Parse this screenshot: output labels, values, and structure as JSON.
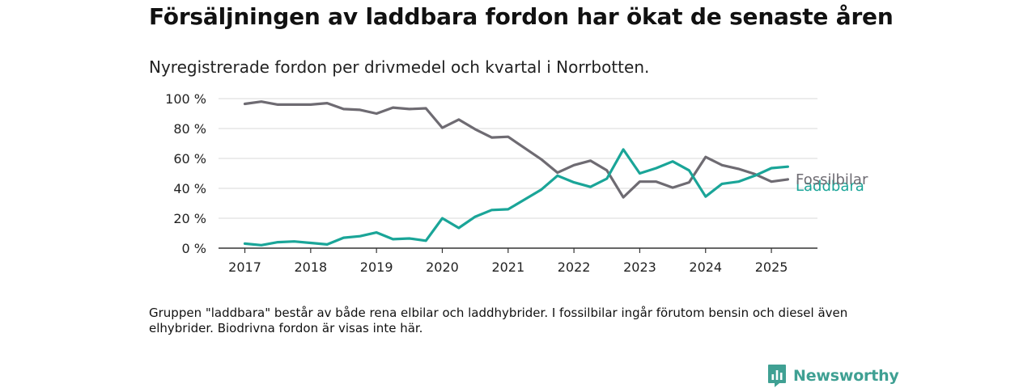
{
  "header": {
    "title": "Försäljningen av laddbara fordon har ökat de senaste åren",
    "subtitle": "Nyregistrerade fordon per drivmedel och kvartal i Norrbotten."
  },
  "footer": {
    "note": "Gruppen \"laddbara\" består av både rena elbilar och laddhybrider. I fossilbilar ingår förutom bensin och diesel även elhybrider. Biodrivna fordon är visas inte här.",
    "brand": "Newsworthy",
    "brand_icon": "bar-chart-speech-bubble-icon",
    "brand_color": "#3fa093"
  },
  "chart_data": {
    "type": "line",
    "ylim": [
      0,
      100
    ],
    "y_ticks": [
      0,
      20,
      40,
      60,
      80,
      100
    ],
    "y_tick_labels": [
      "0 %",
      "20 %",
      "40 %",
      "60 %",
      "80 %",
      "100 %"
    ],
    "x_ticks": [
      2017,
      2018,
      2019,
      2020,
      2021,
      2022,
      2023,
      2024,
      2025
    ],
    "x_tick_labels": [
      "2017",
      "2018",
      "2019",
      "2020",
      "2021",
      "2022",
      "2023",
      "2024",
      "2025"
    ],
    "grid": true,
    "legend": "inline labels at line ends",
    "x": [
      "2017 Q1",
      "2017 Q2",
      "2017 Q3",
      "2017 Q4",
      "2018 Q1",
      "2018 Q2",
      "2018 Q3",
      "2018 Q4",
      "2019 Q1",
      "2019 Q2",
      "2019 Q3",
      "2019 Q4",
      "2020 Q1",
      "2020 Q2",
      "2020 Q3",
      "2020 Q4",
      "2021 Q1",
      "2021 Q2",
      "2021 Q3",
      "2021 Q4",
      "2022 Q1",
      "2022 Q2",
      "2022 Q3",
      "2022 Q4",
      "2023 Q1",
      "2023 Q2",
      "2023 Q3",
      "2023 Q4",
      "2024 Q1",
      "2024 Q2",
      "2024 Q3",
      "2024 Q4",
      "2025 Q1",
      "2025 Q2"
    ],
    "series": [
      {
        "name": "Fossilbilar",
        "color": "#6e6b72",
        "values": [
          96.5,
          98,
          96,
          96,
          96,
          97,
          93,
          92.5,
          90,
          94,
          93,
          93.5,
          80.5,
          86,
          79.5,
          74,
          74.5,
          67,
          59.5,
          50.5,
          55.5,
          58.5,
          52,
          34,
          44.5,
          44.5,
          40.5,
          44,
          61,
          55.5,
          53,
          49.5,
          44.5,
          46
        ]
      },
      {
        "name": "Laddbara",
        "color": "#1aa598",
        "values": [
          3,
          2,
          4,
          4.5,
          3.5,
          2.5,
          7,
          8,
          10.5,
          6,
          6.5,
          5,
          20,
          13.5,
          21,
          25.5,
          26,
          32.5,
          39,
          48.5,
          44,
          41,
          46.5,
          66,
          50,
          53.5,
          58,
          52,
          34.5,
          43,
          44.5,
          48.5,
          53.5,
          54.5
        ]
      }
    ]
  }
}
